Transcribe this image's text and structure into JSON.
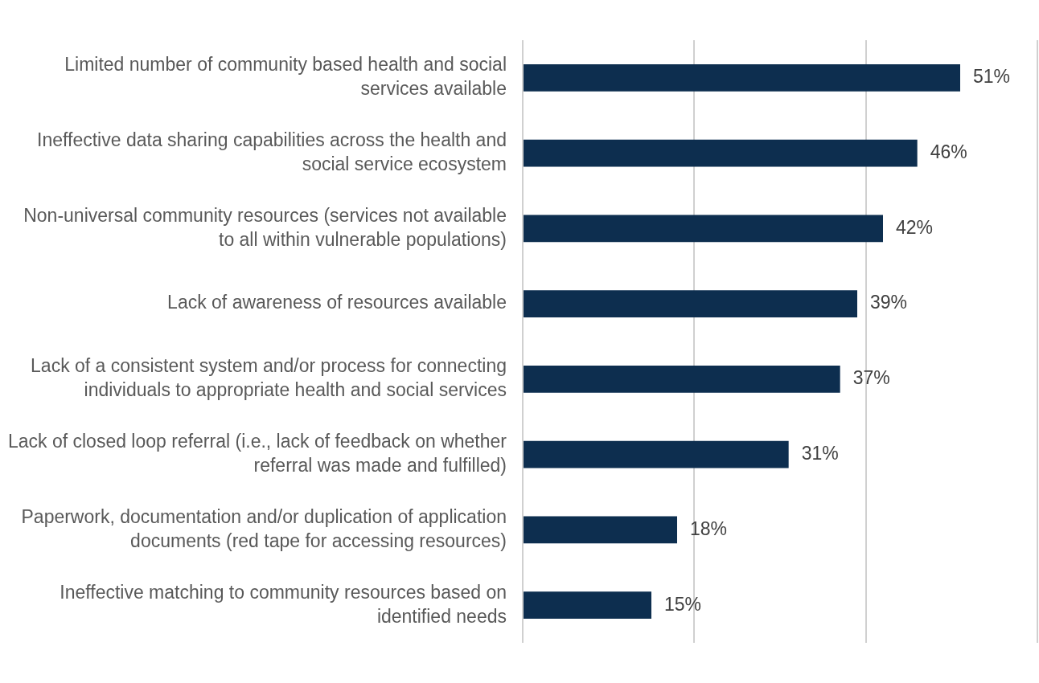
{
  "chart_data": {
    "type": "bar",
    "orientation": "horizontal",
    "relative": false,
    "categories": [
      "Limited number of community based health and social services available",
      "Ineffective data sharing capabilities across the health and social service ecosystem",
      "Non-universal community resources (services not available to all within vulnerable populations)",
      "Lack of awareness of resources available",
      "Lack of a consistent system and/or process for connecting individuals to appropriate health and social services",
      "Lack of closed loop referral (i.e., lack of feedback on whether referral was made and fulfilled)",
      "Paperwork, documentation and/or duplication of application documents (red tape for accessing resources)",
      "Ineffective matching to community resources based on identified needs"
    ],
    "values": [
      51,
      46,
      42,
      39,
      37,
      31,
      18,
      15
    ],
    "value_labels": [
      "51%",
      "46%",
      "42%",
      "39%",
      "37%",
      "31%",
      "18%",
      "15%"
    ],
    "color": "#0d2e4f",
    "xlim": [
      0,
      60
    ],
    "xticks": [
      {
        "value": 0,
        "label": null
      },
      {
        "value": 20,
        "label": null
      },
      {
        "value": 40,
        "label": null
      },
      {
        "value": 60,
        "label": null
      }
    ],
    "grid": "x",
    "tick_labels": "y",
    "legend": false
  }
}
